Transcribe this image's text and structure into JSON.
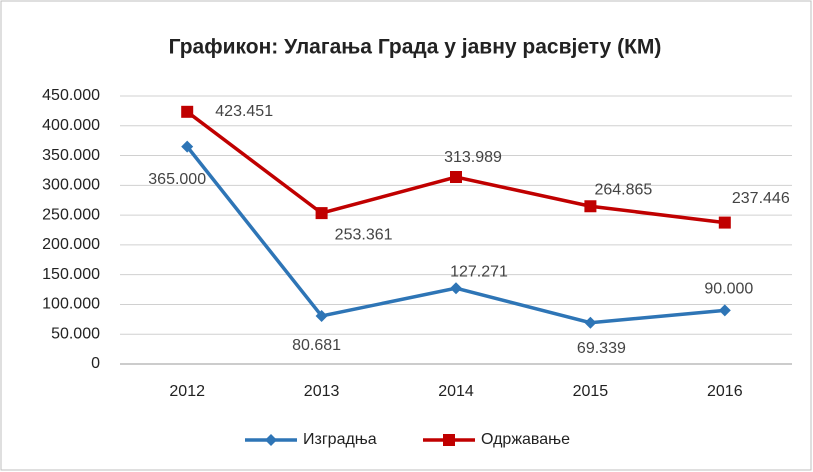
{
  "chart_data": {
    "type": "line",
    "title": "Графикон: Улагања Града у јавну расвјету (КМ)",
    "categories": [
      "2012",
      "2013",
      "2014",
      "2015",
      "2016"
    ],
    "series": [
      {
        "name": "Изградња",
        "color": "#2e75b6",
        "marker": "diamond",
        "values": [
          365000,
          80681,
          127271,
          69339,
          90000
        ],
        "value_labels": [
          "365.000",
          "80.681",
          "127.271",
          "69.339",
          "90.000"
        ]
      },
      {
        "name": "Одржавање",
        "color": "#c00000",
        "marker": "square",
        "values": [
          423451,
          253361,
          313989,
          264865,
          237446
        ],
        "value_labels": [
          "423.451",
          "253.361",
          "313.989",
          "264.865",
          "237.446"
        ]
      }
    ],
    "ylim": [
      0,
      450000
    ],
    "yticks": [
      0,
      {
        "value": 50000,
        "label": "50.000"
      },
      {
        "value": 100000,
        "label": "100.000"
      },
      {
        "value": 150000,
        "label": "150.000"
      },
      {
        "value": 200000,
        "label": "200.000"
      },
      {
        "value": 250000,
        "label": "250.000"
      },
      {
        "value": 300000,
        "label": "300.000"
      },
      {
        "value": 350000,
        "label": "350.000"
      },
      {
        "value": 400000,
        "label": "400.000"
      },
      {
        "value": 450000,
        "label": "450.000"
      }
    ],
    "grid": true,
    "legend": "bottom"
  }
}
